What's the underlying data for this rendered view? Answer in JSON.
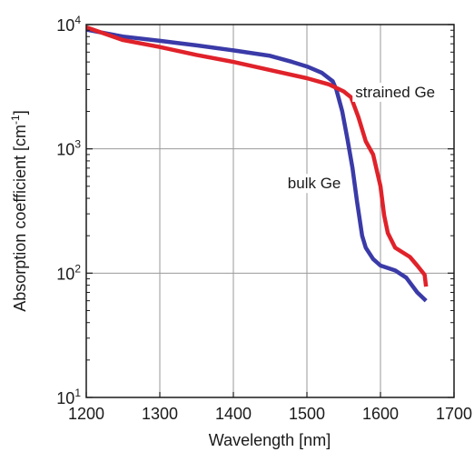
{
  "chart_data": {
    "type": "line",
    "xlabel": "Wavelength [nm]",
    "ylabel_main": "Absorption coefficient [cm",
    "ylabel_sup": "-1",
    "ylabel_close": "]",
    "xlim": [
      1200,
      1700
    ],
    "ylim": [
      10,
      10000
    ],
    "yscale": "log",
    "grid": true,
    "x_ticks": [
      {
        "value": 1200,
        "label": "1200"
      },
      {
        "value": 1300,
        "label": "1300"
      },
      {
        "value": 1400,
        "label": "1400"
      },
      {
        "value": 1500,
        "label": "1500"
      },
      {
        "value": 1600,
        "label": "1600"
      },
      {
        "value": 1700,
        "label": "1700"
      }
    ],
    "y_ticks": [
      {
        "value": 10,
        "base": "10",
        "exp": "1"
      },
      {
        "value": 100,
        "base": "10",
        "exp": "2"
      },
      {
        "value": 1000,
        "base": "10",
        "exp": "3"
      },
      {
        "value": 10000,
        "base": "10",
        "exp": "4"
      }
    ],
    "series": [
      {
        "name": "bulk Ge",
        "color": "#3a3aa8",
        "points": [
          [
            1200,
            9100
          ],
          [
            1250,
            8000
          ],
          [
            1300,
            7400
          ],
          [
            1350,
            6800
          ],
          [
            1400,
            6200
          ],
          [
            1450,
            5600
          ],
          [
            1480,
            5000
          ],
          [
            1500,
            4600
          ],
          [
            1520,
            4100
          ],
          [
            1535,
            3500
          ],
          [
            1540,
            3000
          ],
          [
            1548,
            2000
          ],
          [
            1555,
            1200
          ],
          [
            1562,
            700
          ],
          [
            1568,
            380
          ],
          [
            1575,
            200
          ],
          [
            1580,
            160
          ],
          [
            1590,
            130
          ],
          [
            1600,
            115
          ],
          [
            1620,
            105
          ],
          [
            1635,
            92
          ],
          [
            1650,
            70
          ],
          [
            1662,
            60
          ]
        ]
      },
      {
        "name": "strained Ge",
        "color": "#e0222a",
        "points": [
          [
            1200,
            9500
          ],
          [
            1250,
            7500
          ],
          [
            1300,
            6600
          ],
          [
            1350,
            5700
          ],
          [
            1400,
            5000
          ],
          [
            1450,
            4300
          ],
          [
            1500,
            3700
          ],
          [
            1530,
            3300
          ],
          [
            1550,
            2900
          ],
          [
            1560,
            2600
          ],
          [
            1570,
            1800
          ],
          [
            1580,
            1150
          ],
          [
            1590,
            900
          ],
          [
            1600,
            500
          ],
          [
            1605,
            290
          ],
          [
            1610,
            210
          ],
          [
            1620,
            160
          ],
          [
            1640,
            135
          ],
          [
            1650,
            115
          ],
          [
            1660,
            97
          ],
          [
            1662,
            78
          ]
        ]
      }
    ],
    "annotations": [
      {
        "text": "strained Ge",
        "x": 1620,
        "y": 2600
      },
      {
        "text": "bulk Ge",
        "x": 1510,
        "y": 480
      }
    ]
  }
}
